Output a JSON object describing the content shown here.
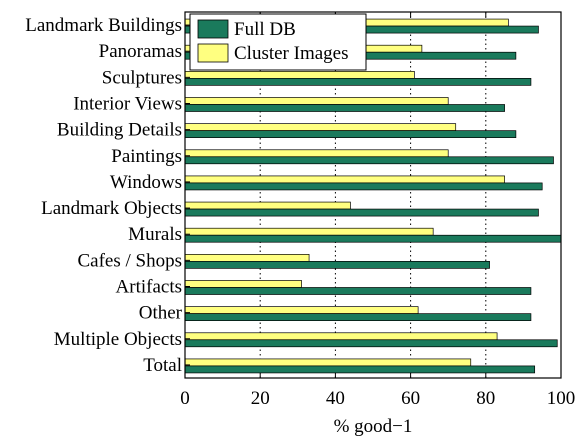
{
  "chart_data": {
    "type": "bar",
    "orientation": "horizontal",
    "categories": [
      "Landmark Buildings",
      "Panoramas",
      "Sculptures",
      "Interior Views",
      "Building Details",
      "Paintings",
      "Windows",
      "Landmark Objects",
      "Murals",
      "Cafes / Shops",
      "Artifacts",
      "Other",
      "Multiple Objects",
      "Total"
    ],
    "series": [
      {
        "name": "Full DB",
        "color": "#1a7a5c",
        "values": [
          94,
          88,
          92,
          85,
          88,
          98,
          95,
          94,
          100,
          81,
          92,
          92,
          99,
          93
        ]
      },
      {
        "name": "Cluster Images",
        "color": "#ffff80",
        "values": [
          86,
          63,
          61,
          70,
          72,
          70,
          85,
          44,
          66,
          33,
          31,
          62,
          83,
          76
        ]
      }
    ],
    "title": "",
    "xlabel": "% good−1",
    "ylabel": "",
    "xlim": [
      0,
      100
    ],
    "xticks": [
      "0",
      "20",
      "40",
      "60",
      "80",
      "100"
    ],
    "grid": "vertical dotted",
    "legend_position": "top-left"
  }
}
